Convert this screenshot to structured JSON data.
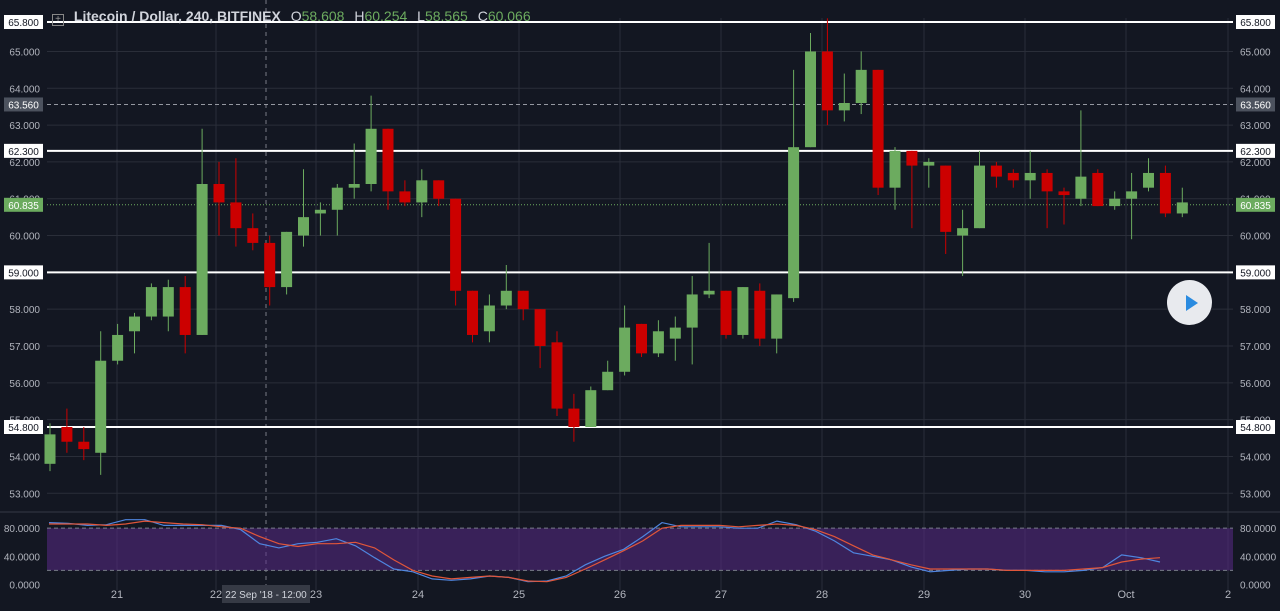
{
  "legend": {
    "expand_icon": "plus-square-icon",
    "symbol": "Litecoin / Dollar, 240, BITFINEX",
    "o_label": "O",
    "o_value": "58.608",
    "h_label": "H",
    "h_value": "60.254",
    "l_label": "L",
    "l_value": "58.565",
    "c_label": "C",
    "c_value": "60.066"
  },
  "crosshair_label": "22 Sep '18 - 12:00",
  "play_button_icon": "play-icon",
  "colors": {
    "background": "#131722",
    "grid": "#2a2e39",
    "up": "#6cab5f",
    "down": "#cc0000",
    "hline": "#ffffff",
    "current_price": "#6cab5f",
    "k_line": "#4f86e0",
    "d_line": "#e0563a",
    "stoch_band": "#5a2a86"
  },
  "chart_data": [
    {
      "type": "candlestick",
      "title": "Litecoin / Dollar, 240, BITFINEX",
      "y_ticks": [
        "53.000",
        "54.000",
        "55.000",
        "56.000",
        "57.000",
        "58.000",
        "59.000",
        "60.000",
        "61.000",
        "62.000",
        "63.000",
        "64.000",
        "65.000"
      ],
      "x_ticks": [
        "21",
        "22",
        "23",
        "24",
        "25",
        "26",
        "27",
        "28",
        "29",
        "30",
        "Oct",
        "2"
      ],
      "ylim": [
        52.6,
        65.8
      ],
      "horizontal_levels": [
        {
          "label": "65.800",
          "value": 65.8,
          "style": "solid"
        },
        {
          "label": "63.560",
          "value": 63.56,
          "style": "dashed"
        },
        {
          "label": "62.300",
          "value": 62.3,
          "style": "solid"
        },
        {
          "label": "59.000",
          "value": 59.0,
          "style": "solid"
        },
        {
          "label": "54.800",
          "value": 54.8,
          "style": "solid"
        }
      ],
      "current_price": {
        "label": "60.835",
        "value": 60.835
      },
      "candles": [
        {
          "o": 53.8,
          "h": 54.9,
          "l": 53.6,
          "c": 54.6
        },
        {
          "o": 54.8,
          "h": 55.3,
          "l": 54.1,
          "c": 54.4
        },
        {
          "o": 54.4,
          "h": 54.8,
          "l": 53.9,
          "c": 54.2
        },
        {
          "o": 54.1,
          "h": 57.4,
          "l": 53.5,
          "c": 56.6
        },
        {
          "o": 56.6,
          "h": 57.6,
          "l": 56.5,
          "c": 57.3
        },
        {
          "o": 57.4,
          "h": 57.9,
          "l": 56.8,
          "c": 57.8
        },
        {
          "o": 57.8,
          "h": 58.7,
          "l": 57.7,
          "c": 58.6
        },
        {
          "o": 57.8,
          "h": 58.8,
          "l": 57.4,
          "c": 58.6
        },
        {
          "o": 58.6,
          "h": 58.9,
          "l": 56.8,
          "c": 57.3
        },
        {
          "o": 57.3,
          "h": 62.9,
          "l": 57.3,
          "c": 61.4
        },
        {
          "o": 61.4,
          "h": 62.0,
          "l": 60.0,
          "c": 60.9
        },
        {
          "o": 60.9,
          "h": 62.1,
          "l": 59.7,
          "c": 60.2
        },
        {
          "o": 60.2,
          "h": 60.6,
          "l": 59.6,
          "c": 59.8
        },
        {
          "o": 59.8,
          "h": 60.0,
          "l": 58.1,
          "c": 58.6
        },
        {
          "o": 58.6,
          "h": 60.1,
          "l": 58.4,
          "c": 60.1
        },
        {
          "o": 60.0,
          "h": 61.8,
          "l": 59.7,
          "c": 60.5
        },
        {
          "o": 60.6,
          "h": 60.9,
          "l": 60.0,
          "c": 60.7
        },
        {
          "o": 60.7,
          "h": 61.4,
          "l": 60.0,
          "c": 61.3
        },
        {
          "o": 61.3,
          "h": 62.5,
          "l": 61.0,
          "c": 61.4
        },
        {
          "o": 61.4,
          "h": 63.8,
          "l": 61.2,
          "c": 62.9
        },
        {
          "o": 62.9,
          "h": 62.9,
          "l": 60.7,
          "c": 61.2
        },
        {
          "o": 61.2,
          "h": 61.5,
          "l": 60.8,
          "c": 60.9
        },
        {
          "o": 60.9,
          "h": 61.8,
          "l": 60.5,
          "c": 61.5
        },
        {
          "o": 61.5,
          "h": 61.5,
          "l": 60.8,
          "c": 61.0
        },
        {
          "o": 61.0,
          "h": 61.0,
          "l": 58.1,
          "c": 58.5
        },
        {
          "o": 58.5,
          "h": 58.5,
          "l": 57.1,
          "c": 57.3
        },
        {
          "o": 57.4,
          "h": 58.4,
          "l": 57.1,
          "c": 58.1
        },
        {
          "o": 58.1,
          "h": 59.2,
          "l": 58.0,
          "c": 58.5
        },
        {
          "o": 58.5,
          "h": 58.5,
          "l": 57.7,
          "c": 58.0
        },
        {
          "o": 58.0,
          "h": 58.0,
          "l": 56.4,
          "c": 57.0
        },
        {
          "o": 57.1,
          "h": 57.4,
          "l": 55.1,
          "c": 55.3
        },
        {
          "o": 55.3,
          "h": 55.7,
          "l": 54.4,
          "c": 54.8
        },
        {
          "o": 54.8,
          "h": 55.9,
          "l": 54.8,
          "c": 55.8
        },
        {
          "o": 55.8,
          "h": 56.6,
          "l": 55.8,
          "c": 56.3
        },
        {
          "o": 56.3,
          "h": 58.1,
          "l": 56.2,
          "c": 57.5
        },
        {
          "o": 57.6,
          "h": 57.6,
          "l": 56.7,
          "c": 56.8
        },
        {
          "o": 56.8,
          "h": 57.7,
          "l": 56.7,
          "c": 57.4
        },
        {
          "o": 57.2,
          "h": 57.8,
          "l": 56.6,
          "c": 57.5
        },
        {
          "o": 57.5,
          "h": 58.9,
          "l": 56.5,
          "c": 58.4
        },
        {
          "o": 58.4,
          "h": 59.8,
          "l": 58.3,
          "c": 58.5
        },
        {
          "o": 58.5,
          "h": 58.5,
          "l": 57.2,
          "c": 57.3
        },
        {
          "o": 57.3,
          "h": 58.6,
          "l": 57.2,
          "c": 58.6
        },
        {
          "o": 58.5,
          "h": 58.7,
          "l": 57.0,
          "c": 57.2
        },
        {
          "o": 57.2,
          "h": 58.4,
          "l": 56.8,
          "c": 58.4
        },
        {
          "o": 58.3,
          "h": 64.5,
          "l": 58.2,
          "c": 62.4
        },
        {
          "o": 62.4,
          "h": 65.5,
          "l": 62.4,
          "c": 65.0
        },
        {
          "o": 65.0,
          "h": 65.9,
          "l": 63.0,
          "c": 63.4
        },
        {
          "o": 63.4,
          "h": 64.4,
          "l": 63.1,
          "c": 63.6
        },
        {
          "o": 63.6,
          "h": 65.0,
          "l": 63.3,
          "c": 64.5
        },
        {
          "o": 64.5,
          "h": 64.5,
          "l": 61.1,
          "c": 61.3
        },
        {
          "o": 61.3,
          "h": 62.4,
          "l": 60.7,
          "c": 62.3
        },
        {
          "o": 62.3,
          "h": 62.3,
          "l": 60.2,
          "c": 61.9
        },
        {
          "o": 61.9,
          "h": 62.1,
          "l": 61.3,
          "c": 62.0
        },
        {
          "o": 61.9,
          "h": 61.9,
          "l": 59.5,
          "c": 60.1
        },
        {
          "o": 60.0,
          "h": 60.7,
          "l": 58.9,
          "c": 60.2
        },
        {
          "o": 60.2,
          "h": 62.3,
          "l": 60.2,
          "c": 61.9
        },
        {
          "o": 61.9,
          "h": 62.0,
          "l": 61.3,
          "c": 61.6
        },
        {
          "o": 61.7,
          "h": 61.8,
          "l": 61.3,
          "c": 61.5
        },
        {
          "o": 61.5,
          "h": 62.3,
          "l": 61.0,
          "c": 61.7
        },
        {
          "o": 61.7,
          "h": 61.8,
          "l": 60.2,
          "c": 61.2
        },
        {
          "o": 61.2,
          "h": 61.3,
          "l": 60.3,
          "c": 61.1
        },
        {
          "o": 61.0,
          "h": 63.4,
          "l": 60.8,
          "c": 61.6
        },
        {
          "o": 61.7,
          "h": 61.8,
          "l": 60.8,
          "c": 60.8
        },
        {
          "o": 60.8,
          "h": 61.2,
          "l": 60.7,
          "c": 61.0
        },
        {
          "o": 61.0,
          "h": 61.7,
          "l": 59.9,
          "c": 61.2
        },
        {
          "o": 61.3,
          "h": 62.1,
          "l": 61.2,
          "c": 61.7
        },
        {
          "o": 61.7,
          "h": 61.9,
          "l": 60.5,
          "c": 60.6
        },
        {
          "o": 60.6,
          "h": 61.3,
          "l": 60.5,
          "c": 60.9
        }
      ]
    },
    {
      "type": "line",
      "title": "",
      "y_ticks": [
        "0.0000",
        "40.0000",
        "80.0000"
      ],
      "ylim": [
        -5,
        103
      ],
      "band": [
        20,
        80
      ],
      "series": [
        {
          "values": [
            88,
            87,
            84,
            85,
            92,
            92,
            84,
            84,
            84,
            84,
            78,
            58,
            52,
            58,
            60,
            65,
            55,
            38,
            22,
            18,
            8,
            6,
            8,
            12,
            10,
            4,
            5,
            12,
            28,
            40,
            50,
            68,
            88,
            82,
            82,
            82,
            80,
            80,
            90,
            85,
            76,
            62,
            45,
            40,
            35,
            25,
            18,
            20,
            22,
            22,
            20,
            20,
            18,
            18,
            20,
            24,
            42,
            38,
            32
          ]
        },
        {
          "values": [
            86,
            86,
            86,
            84,
            86,
            90,
            88,
            86,
            85,
            82,
            80,
            68,
            58,
            54,
            58,
            58,
            60,
            52,
            35,
            20,
            12,
            8,
            10,
            12,
            10,
            5,
            4,
            10,
            22,
            35,
            48,
            62,
            80,
            84,
            84,
            84,
            82,
            84,
            86,
            84,
            78,
            68,
            55,
            42,
            35,
            28,
            22,
            22,
            22,
            22,
            20,
            20,
            20,
            20,
            22,
            24,
            32,
            36,
            38
          ]
        }
      ]
    }
  ]
}
